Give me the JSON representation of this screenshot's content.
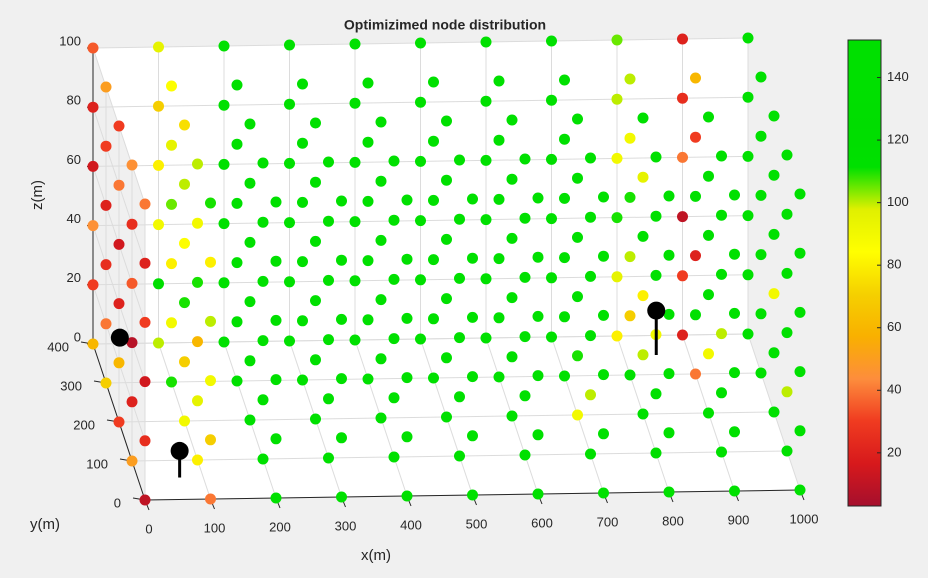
{
  "chart_data": {
    "type": "scatter3d",
    "title": "Optimizimed node distribution",
    "x_label": "x(m)",
    "y_label": "y(m)",
    "z_label": "z(m)",
    "x": [
      0,
      100,
      200,
      300,
      400,
      500,
      600,
      700,
      800,
      900,
      1000
    ],
    "y": [
      0,
      100,
      200,
      300,
      400
    ],
    "z": [
      0,
      20,
      40,
      60,
      80,
      100
    ],
    "values": [
      [
        [
          10,
          25,
          15,
          30,
          20,
          40
        ],
        [
          50,
          20,
          8,
          35,
          25,
          45
        ],
        [
          30,
          60,
          20,
          15,
          40,
          30
        ],
        [
          70,
          40,
          25,
          20,
          30,
          50
        ],
        [
          60,
          30,
          45,
          15,
          20,
          35
        ]
      ],
      [
        [
          40,
          70,
          90,
          100,
          80,
          110
        ],
        [
          80,
          95,
          60,
          110,
          90,
          100
        ],
        [
          90,
          70,
          110,
          85,
          100,
          75
        ],
        [
          110,
          90,
          80,
          105,
          95,
          85
        ],
        [
          100,
          120,
          90,
          80,
          70,
          95
        ]
      ],
      [
        [
          140,
          140,
          140,
          140,
          140,
          140
        ],
        [
          140,
          140,
          140,
          140,
          140,
          140
        ],
        [
          140,
          140,
          140,
          140,
          140,
          140
        ],
        [
          140,
          140,
          140,
          140,
          140,
          140
        ],
        [
          140,
          140,
          140,
          140,
          140,
          140
        ]
      ],
      [
        [
          140,
          140,
          140,
          140,
          140,
          140
        ],
        [
          140,
          140,
          140,
          140,
          140,
          140
        ],
        [
          140,
          140,
          140,
          140,
          140,
          140
        ],
        [
          140,
          140,
          140,
          140,
          140,
          140
        ],
        [
          140,
          140,
          140,
          140,
          140,
          140
        ]
      ],
      [
        [
          140,
          140,
          140,
          140,
          140,
          140
        ],
        [
          140,
          140,
          140,
          140,
          140,
          140
        ],
        [
          140,
          140,
          140,
          140,
          140,
          140
        ],
        [
          140,
          140,
          140,
          140,
          140,
          140
        ],
        [
          140,
          140,
          140,
          140,
          140,
          140
        ]
      ],
      [
        [
          140,
          140,
          140,
          140,
          140,
          140
        ],
        [
          140,
          140,
          140,
          140,
          140,
          140
        ],
        [
          140,
          140,
          140,
          140,
          140,
          140
        ],
        [
          140,
          140,
          140,
          140,
          140,
          140
        ],
        [
          140,
          140,
          140,
          140,
          140,
          140
        ]
      ],
      [
        [
          140,
          140,
          140,
          140,
          140,
          140
        ],
        [
          140,
          140,
          140,
          140,
          140,
          140
        ],
        [
          140,
          130,
          140,
          140,
          140,
          140
        ],
        [
          140,
          140,
          140,
          140,
          140,
          140
        ],
        [
          140,
          140,
          140,
          140,
          140,
          140
        ]
      ],
      [
        [
          140,
          140,
          140,
          140,
          140,
          140
        ],
        [
          140,
          100,
          140,
          140,
          140,
          140
        ],
        [
          90,
          110,
          140,
          140,
          140,
          140
        ],
        [
          140,
          140,
          140,
          140,
          140,
          140
        ],
        [
          140,
          140,
          140,
          130,
          140,
          140
        ]
      ],
      [
        [
          140,
          140,
          140,
          140,
          140,
          140
        ],
        [
          130,
          140,
          90,
          140,
          140,
          140
        ],
        [
          140,
          100,
          80,
          140,
          95,
          140
        ],
        [
          140,
          70,
          100,
          110,
          90,
          100
        ],
        [
          80,
          95,
          110,
          90,
          100,
          105
        ]
      ],
      [
        [
          140,
          140,
          140,
          140,
          140,
          140
        ],
        [
          140,
          140,
          100,
          140,
          140,
          140
        ],
        [
          140,
          90,
          140,
          120,
          140,
          140
        ],
        [
          40,
          140,
          20,
          140,
          30,
          60
        ],
        [
          20,
          30,
          10,
          40,
          25,
          20
        ]
      ],
      [
        [
          140,
          140,
          140,
          140,
          140,
          140
        ],
        [
          140,
          100,
          140,
          140,
          140,
          140
        ],
        [
          140,
          140,
          90,
          140,
          140,
          140
        ],
        [
          140,
          140,
          140,
          140,
          140,
          140
        ],
        [
          140,
          140,
          140,
          140,
          140,
          140
        ]
      ]
    ],
    "sinks": {
      "x": [
        64,
        41,
        850
      ],
      "y": [
        56,
        400,
        350
      ],
      "z": [
        9,
        2,
        15
      ],
      "color": "#000000"
    },
    "xlim": [
      0,
      1000
    ],
    "ylim": [
      0,
      400
    ],
    "zlim": [
      0,
      100
    ],
    "xticks": [
      0,
      100,
      200,
      300,
      400,
      500,
      600,
      700,
      800,
      900,
      1000
    ],
    "yticks": [
      0,
      100,
      200,
      300,
      400
    ],
    "zticks": [
      0,
      20,
      40,
      60,
      80,
      100
    ],
    "clim": [
      3,
      152
    ],
    "cticks": [
      20,
      40,
      60,
      80,
      100,
      120,
      140
    ],
    "colormap": [
      "#a50f2d",
      "#d7191c",
      "#f03b20",
      "#fd8d3c",
      "#f9b000",
      "#f5d000",
      "#ffff00",
      "#e0f000",
      "#00e000",
      "#00dd00",
      "#00e000",
      "#00e000"
    ],
    "grid": true
  }
}
